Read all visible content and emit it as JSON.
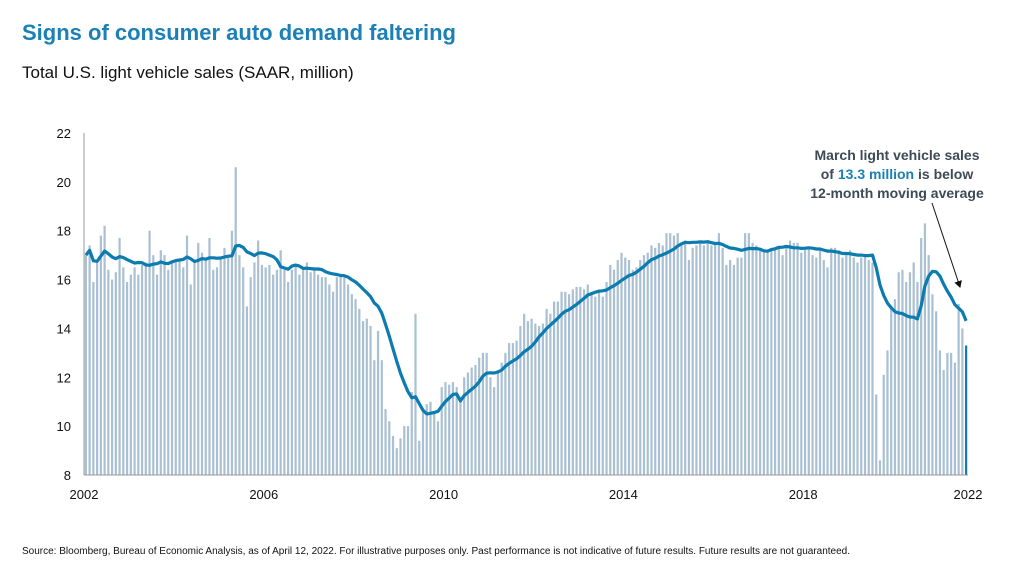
{
  "title": "Signs of consumer auto demand faltering",
  "subtitle": "Total U.S. light vehicle sales (SAAR, million)",
  "source": "Source: Bloomberg, Bureau of Economic Analysis, as of April 12, 2022. For illustrative purposes only. Past performance is not indicative of future results. Future results are not guaranteed.",
  "annotation": {
    "line1": "March light vehicle sales",
    "line2_pre": "of ",
    "line2_highlight": "13.3 million",
    "line2_post": " is below",
    "line3": "12-month moving average"
  },
  "colors": {
    "bars": "#a9c0d2",
    "latest_bar": "#0b7bb0",
    "moving_average": "#0b7bb0",
    "title": "#1b80b6"
  },
  "chart_data": {
    "type": "bar",
    "title": "Total U.S. light vehicle sales (SAAR, million)",
    "frequency": "monthly",
    "start": "2002-01",
    "end": "2022-03",
    "ylim": [
      8,
      22
    ],
    "yticks": [
      8,
      10,
      12,
      14,
      16,
      18,
      20,
      22
    ],
    "xticks": [
      "2002",
      "2006",
      "2010",
      "2014",
      "2018",
      "2022"
    ],
    "grid": false,
    "series": [
      {
        "type": "bar",
        "values": [
          17.0,
          17.4,
          15.9,
          16.7,
          17.8,
          18.2,
          16.4,
          16.0,
          16.3,
          17.7,
          16.5,
          15.9,
          16.2,
          16.5,
          16.2,
          16.6,
          16.7,
          18.0,
          17.0,
          16.2,
          17.2,
          17.0,
          16.4,
          16.7,
          16.8,
          16.8,
          16.5,
          17.8,
          15.8,
          16.7,
          17.5,
          17.1,
          16.9,
          17.7,
          16.4,
          16.5,
          16.9,
          17.3,
          16.9,
          18.0,
          20.6,
          17.0,
          16.5,
          14.9,
          16.1,
          16.7,
          17.6,
          16.6,
          16.5,
          16.6,
          16.2,
          16.4,
          17.2,
          16.4,
          15.9,
          16.4,
          16.6,
          16.2,
          16.5,
          16.7,
          16.3,
          16.4,
          16.2,
          16.1,
          16.1,
          15.8,
          15.5,
          16.1,
          16.1,
          16.1,
          15.8,
          15.4,
          15.2,
          14.8,
          14.3,
          14.4,
          14.1,
          12.7,
          13.9,
          12.7,
          10.7,
          10.2,
          9.6,
          9.1,
          9.5,
          10.0,
          10.0,
          11.4,
          14.6,
          9.4,
          10.6,
          10.9,
          11.0,
          10.6,
          10.2,
          11.6,
          11.8,
          11.7,
          11.8,
          11.6,
          11.2,
          12.0,
          12.2,
          12.4,
          12.5,
          12.8,
          13.0,
          13.0,
          12.0,
          11.6,
          12.3,
          12.6,
          13.0,
          13.4,
          13.4,
          13.5,
          14.1,
          14.6,
          14.3,
          14.4,
          14.2,
          14.1,
          14.2,
          14.8,
          14.6,
          15.1,
          15.1,
          15.5,
          15.5,
          15.4,
          15.6,
          15.7,
          15.7,
          15.6,
          15.8,
          15.5,
          15.3,
          15.6,
          15.3,
          15.9,
          16.6,
          16.4,
          16.8,
          17.1,
          16.9,
          16.8,
          16.4,
          16.5,
          16.8,
          17.0,
          17.1,
          17.4,
          17.3,
          17.5,
          17.4,
          17.9,
          17.9,
          17.8,
          17.9,
          17.5,
          17.6,
          16.8,
          17.3,
          17.4,
          17.5,
          17.4,
          17.6,
          17.4,
          17.5,
          17.9,
          17.3,
          16.6,
          16.8,
          16.6,
          16.9,
          16.9,
          17.9,
          17.9,
          17.5,
          17.4,
          17.2,
          17.1,
          17.2,
          17.3,
          17.2,
          17.3,
          17.0,
          17.3,
          17.6,
          17.5,
          17.5,
          17.1,
          17.3,
          17.3,
          17.0,
          16.9,
          17.2,
          16.8,
          16.5,
          17.3,
          17.3,
          17.2,
          16.9,
          17.1,
          17.2,
          16.9,
          16.7,
          16.9,
          17.0,
          16.8,
          16.7,
          11.3,
          8.6,
          12.1,
          13.1,
          14.9,
          15.2,
          16.3,
          16.4,
          15.9,
          16.3,
          16.7,
          15.9,
          17.7,
          18.3,
          17.0,
          15.4,
          14.7,
          13.1,
          12.3,
          13.0,
          13.0,
          12.6,
          15.0,
          14.0,
          13.3
        ]
      },
      {
        "type": "line",
        "name": "12-month moving average",
        "derived_from": "bar",
        "window": 12
      }
    ]
  }
}
